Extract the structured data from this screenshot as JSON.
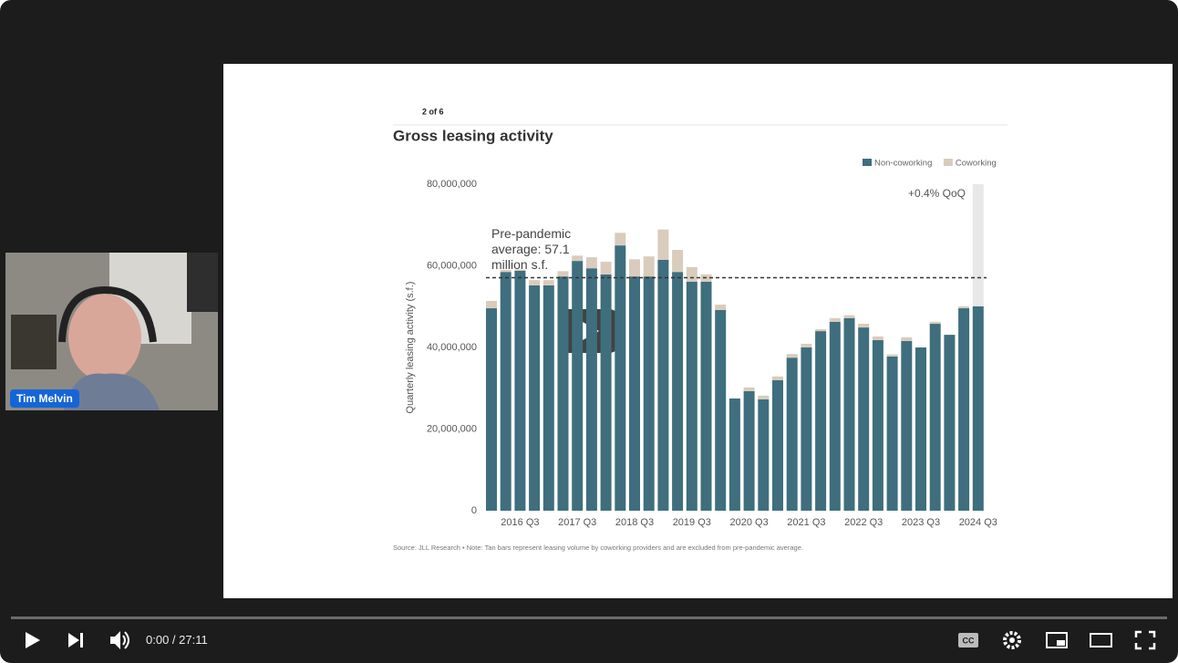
{
  "video": {
    "presenter": "Tim Melvin",
    "time": "0:00 / 27:11"
  },
  "chart_data": {
    "type": "bar",
    "stacked": true,
    "page_label": "2 of 6",
    "title": "Gross leasing activity",
    "y_label": "Quarterly leasing activity (s.f.)",
    "categories": [
      null,
      null,
      "2016 Q3",
      null,
      null,
      null,
      "2017 Q3",
      null,
      null,
      null,
      "2018 Q3",
      null,
      null,
      null,
      "2019 Q3",
      null,
      null,
      null,
      "2020 Q3",
      null,
      null,
      null,
      "2021 Q3",
      null,
      null,
      null,
      "2022 Q3",
      null,
      null,
      null,
      "2023 Q3",
      null,
      null,
      null,
      "2024 Q3"
    ],
    "series": [
      {
        "name": "Non-coworking",
        "color": "#3f6e7e",
        "values": [
          49600000,
          58500000,
          58800000,
          55200000,
          55200000,
          57400000,
          61200000,
          59400000,
          57900000,
          65000000,
          57400000,
          57400000,
          61500000,
          58500000,
          56100000,
          56100000,
          49200000,
          27500000,
          29300000,
          27300000,
          32000000,
          37500000,
          40000000,
          44000000,
          46300000,
          47200000,
          44900000,
          41800000,
          37800000,
          41600000,
          40000000,
          45800000,
          43100000,
          49600000,
          50100000
        ]
      },
      {
        "name": "Coworking",
        "color": "#d9ccbd",
        "values": [
          1800000,
          500000,
          300000,
          1300000,
          1300000,
          1300000,
          1300000,
          2700000,
          3100000,
          3100000,
          4200000,
          4900000,
          7400000,
          5400000,
          3600000,
          1800000,
          1300000,
          0,
          900000,
          900000,
          900000,
          900000,
          900000,
          500000,
          900000,
          700000,
          900000,
          900000,
          500000,
          900000,
          0,
          500000,
          0,
          500000,
          0
        ]
      },
      {
        "color": "#e8e8e8",
        "values": [
          null,
          null,
          null,
          null,
          null,
          null,
          null,
          null,
          null,
          null,
          null,
          null,
          null,
          null,
          null,
          null,
          null,
          null,
          null,
          null,
          null,
          null,
          null,
          null,
          null,
          null,
          null,
          null,
          null,
          null,
          null,
          null,
          null,
          null,
          29900000
        ]
      }
    ],
    "ylim": [
      0,
      80000000
    ],
    "yticks": [
      0,
      {
        "value": 20000000,
        "label": "20,000,000"
      },
      {
        "value": 40000000,
        "label": "40,000,000"
      },
      {
        "value": 60000000,
        "label": "60,000,000"
      },
      {
        "value": 80000000,
        "label": "80,000,000"
      }
    ],
    "reference_line": {
      "value": 57100000,
      "label": "Pre-pandemic average: 57.1 million s.f."
    },
    "annotation": "+0.4% QoQ",
    "legend": "top-right",
    "source": "Source: JLL Research • Note: Tan bars represent leasing volume by coworking providers and are excluded from pre-pandemic average."
  }
}
